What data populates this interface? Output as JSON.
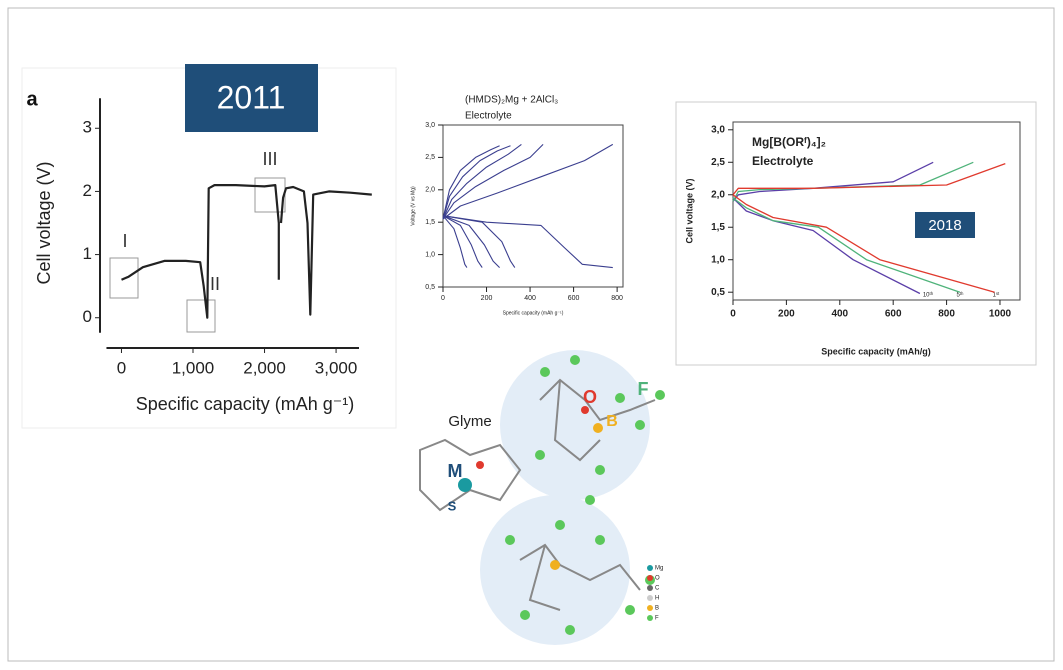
{
  "chart_data": [
    {
      "type": "line",
      "xlabel": "Specific capacity (mAh g⁻¹)",
      "ylabel": "Cell voltage (V)",
      "xlim": [
        -300,
        3600
      ],
      "ylim": [
        -0.4,
        3.4
      ],
      "xticks": [
        0,
        {
          "value": 1000,
          "label": "1,000"
        },
        {
          "value": 2000,
          "label": "2,000"
        },
        {
          "value": 3000,
          "label": "3,000"
        }
      ],
      "yticks": [
        0,
        1,
        2,
        3
      ],
      "annotations": [
        "a",
        "2011",
        "I",
        "II",
        "III"
      ],
      "series": [
        {
          "color": "#222222",
          "x": [
            0,
            100,
            300,
            600,
            900,
            1100,
            1150,
            1200,
            1220,
            1300,
            1600,
            2000,
            2150,
            2200,
            2200,
            null,
            2230,
            2260,
            2300,
            2400,
            2550,
            2600,
            2640,
            2680,
            2900,
            3200,
            3500
          ],
          "values": [
            0.6,
            0.65,
            0.8,
            0.9,
            0.9,
            0.88,
            0.5,
            0,
            2.05,
            2.1,
            2.1,
            2.08,
            2.1,
            1.5,
            0.6,
            null,
            1.5,
            1.9,
            2.05,
            2.07,
            2.0,
            1.5,
            0.05,
            1.95,
            2.0,
            1.98,
            1.95
          ]
        }
      ]
    },
    {
      "type": "line",
      "title": "(HMDS)₂Mg + 2AlCl₃",
      "subtitle": "Electrolyte",
      "xlabel": "Specific capacity (mAh g⁻¹)",
      "ylabel": "Voltage (V vs Mg)",
      "xlim": [
        0,
        827
      ],
      "ylim": [
        0.5,
        3.0
      ],
      "xticks": [
        0,
        200,
        400,
        600,
        800
      ],
      "yticks": [
        {
          "value": 0.5,
          "label": "0,5"
        },
        {
          "value": 1.0,
          "label": "1,0"
        },
        {
          "value": 1.5,
          "label": "1,5"
        },
        {
          "value": 2.0,
          "label": "2,0"
        },
        {
          "value": 2.5,
          "label": "2,5"
        },
        {
          "value": 3.0,
          "label": "3,0"
        }
      ],
      "series": [
        {
          "color": "#3b3f8f",
          "x": [
            0,
            30,
            80,
            150,
            220,
            260
          ],
          "values": [
            1.55,
            2.0,
            2.3,
            2.5,
            2.62,
            2.68
          ]
        },
        {
          "color": "#3b3f8f",
          "x": [
            0,
            30,
            90,
            170,
            250,
            310
          ],
          "values": [
            1.55,
            1.9,
            2.2,
            2.45,
            2.6,
            2.68
          ]
        },
        {
          "color": "#3b3f8f",
          "x": [
            0,
            40,
            110,
            200,
            300,
            360
          ],
          "values": [
            1.55,
            1.85,
            2.1,
            2.35,
            2.55,
            2.7
          ]
        },
        {
          "color": "#3b3f8f",
          "x": [
            0,
            50,
            150,
            280,
            400,
            460
          ],
          "values": [
            1.55,
            1.8,
            2.05,
            2.3,
            2.5,
            2.7
          ]
        },
        {
          "color": "#3b3f8f",
          "x": [
            0,
            80,
            250,
            450,
            650,
            780
          ],
          "values": [
            1.55,
            1.75,
            1.95,
            2.2,
            2.45,
            2.7
          ]
        },
        {
          "color": "#3b3f8f",
          "x": [
            0,
            50,
            80,
            100,
            110
          ],
          "values": [
            1.6,
            1.4,
            1.1,
            0.85,
            0.8
          ]
        },
        {
          "color": "#3b3f8f",
          "x": [
            0,
            80,
            130,
            160,
            180
          ],
          "values": [
            1.6,
            1.45,
            1.15,
            0.9,
            0.8
          ]
        },
        {
          "color": "#3b3f8f",
          "x": [
            0,
            120,
            190,
            230,
            260
          ],
          "values": [
            1.6,
            1.45,
            1.15,
            0.9,
            0.8
          ]
        },
        {
          "color": "#3b3f8f",
          "x": [
            0,
            180,
            270,
            310,
            330
          ],
          "values": [
            1.6,
            1.5,
            1.2,
            0.9,
            0.8
          ]
        },
        {
          "color": "#3b3f8f",
          "x": [
            0,
            200,
            450,
            560,
            640,
            780
          ],
          "values": [
            1.6,
            1.5,
            1.45,
            1.1,
            0.85,
            0.8
          ]
        }
      ]
    },
    {
      "type": "line",
      "title": "Mg[B(ORᶠ)₄]₂",
      "subtitle": "Electrolyte",
      "xlabel": "Specific capacity (mAh/g)",
      "ylabel": "Cell voltage (V)",
      "xlim": [
        0,
        1075
      ],
      "ylim": [
        0.38,
        3.12
      ],
      "xticks": [
        0,
        200,
        400,
        600,
        800,
        1000
      ],
      "yticks": [
        {
          "value": 0.5,
          "label": "0,5"
        },
        {
          "value": 1.0,
          "label": "1,0"
        },
        {
          "value": 1.5,
          "label": "1,5"
        },
        {
          "value": 2.0,
          "label": "2,0"
        },
        {
          "value": 2.5,
          "label": "2,5"
        },
        {
          "value": 3.0,
          "label": "3,0"
        }
      ],
      "annotations": [
        "2018",
        "10ᵗʰ",
        "5ᵗʰ",
        "1ˢᵗ"
      ],
      "series": [
        {
          "color": "#5b3fa8",
          "x": [
            0,
            20,
            100,
            300,
            600,
            750
          ],
          "values": [
            1.9,
            2.0,
            2.05,
            2.1,
            2.2,
            2.5
          ]
        },
        {
          "color": "#4fb37a",
          "x": [
            0,
            20,
            100,
            300,
            700,
            900
          ],
          "values": [
            1.9,
            2.05,
            2.08,
            2.1,
            2.15,
            2.5
          ]
        },
        {
          "color": "#e03a2e",
          "x": [
            0,
            20,
            100,
            300,
            800,
            1020
          ],
          "values": [
            2.0,
            2.1,
            2.1,
            2.1,
            2.15,
            2.48
          ]
        },
        {
          "color": "#5b3fa8",
          "x": [
            0,
            50,
            150,
            300,
            450,
            700
          ],
          "values": [
            1.95,
            1.75,
            1.6,
            1.45,
            1.0,
            0.48
          ]
        },
        {
          "color": "#4fb37a",
          "x": [
            0,
            50,
            150,
            320,
            500,
            850
          ],
          "values": [
            1.95,
            1.8,
            1.6,
            1.5,
            1.0,
            0.5
          ]
        },
        {
          "color": "#e03a2e",
          "x": [
            0,
            50,
            150,
            350,
            550,
            980
          ],
          "values": [
            2.0,
            1.85,
            1.65,
            1.5,
            1.0,
            0.5
          ]
        }
      ]
    }
  ],
  "molecule": {
    "title": "Glyme",
    "atom_labels": [
      "M",
      "S",
      "O",
      "B",
      "F"
    ],
    "legend": [
      "Mg",
      "O",
      "C",
      "H",
      "B",
      "F"
    ]
  }
}
